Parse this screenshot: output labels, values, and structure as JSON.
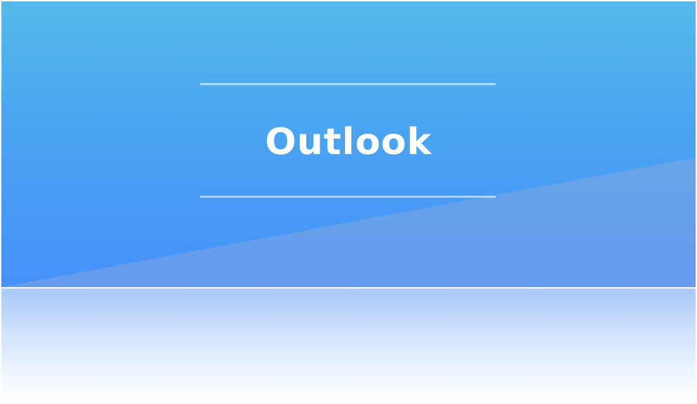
{
  "banner": {
    "title": "Outlook",
    "colors": {
      "gradient_top": "#55b8ea",
      "gradient_bottom": "#4591fa",
      "wedge": "#6fa3ea",
      "divider": "#cfe5fb"
    }
  }
}
